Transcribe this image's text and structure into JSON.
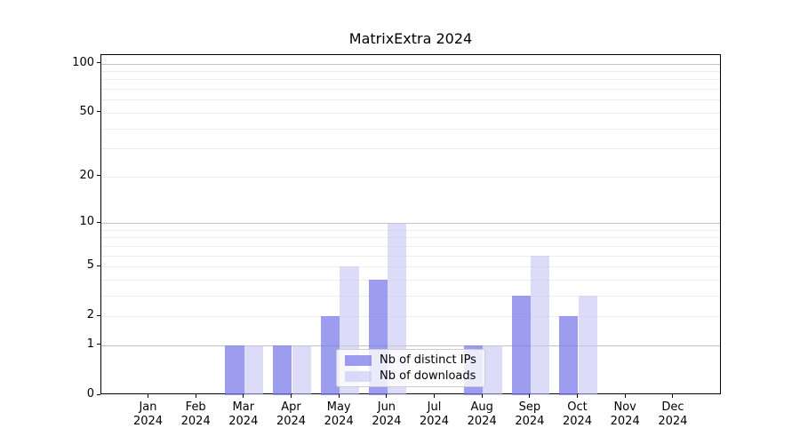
{
  "title": "MatrixExtra 2024",
  "chart_data": {
    "type": "bar",
    "title": "MatrixExtra 2024",
    "categories": [
      "Jan",
      "Feb",
      "Mar",
      "Apr",
      "May",
      "Jun",
      "Jul",
      "Aug",
      "Sep",
      "Oct",
      "Nov",
      "Dec"
    ],
    "year_label": "2024",
    "series": [
      {
        "name": "Nb of distinct IPs",
        "values": [
          0,
          0,
          1,
          1,
          2,
          4,
          0,
          1,
          3,
          2,
          0,
          0
        ],
        "color": "#7c7ceb",
        "alpha": 0.75
      },
      {
        "name": "Nb of downloads",
        "values": [
          0,
          0,
          1,
          1,
          5,
          10,
          0,
          1,
          6,
          3,
          0,
          0
        ],
        "color": "#c5c5f5",
        "alpha": 0.6
      }
    ],
    "xlabel": "",
    "ylabel": "",
    "yscale": "log1p",
    "ylim": [
      0,
      112
    ],
    "yticks": [
      0,
      1,
      2,
      5,
      10,
      20,
      50,
      100
    ],
    "gridlines": {
      "major": [
        1,
        10,
        100
      ],
      "minor": [
        2,
        3,
        4,
        5,
        6,
        7,
        8,
        9,
        20,
        30,
        40,
        50,
        60,
        70,
        80,
        90
      ]
    },
    "grid": true,
    "legend_position": "lower center"
  }
}
